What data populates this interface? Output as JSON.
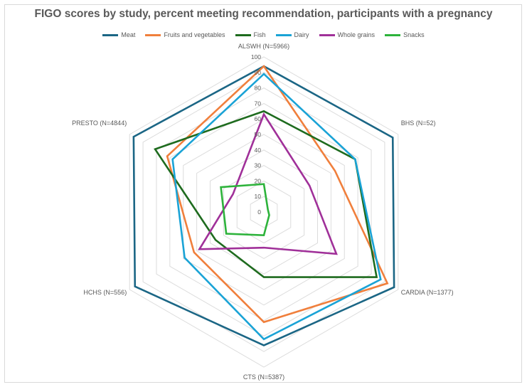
{
  "chart_data": {
    "type": "radar",
    "title": "FIGO scores by study, percent meeting recommendation, participants with a pregnancy",
    "categories": [
      "ALSWH (N=5966)",
      "BHS (N=52)",
      "CARDIA (N=1377)",
      "CTS (N=5387)",
      "HCHS (N=556)",
      "PRESTO (N=4844)"
    ],
    "rlim": [
      0,
      100
    ],
    "ticks": [
      "0",
      "10",
      "20",
      "30",
      "40",
      "50",
      "60",
      "70",
      "80",
      "90",
      "100"
    ],
    "legend_position": "top",
    "series": [
      {
        "name": "Meat",
        "color": "#1b6685",
        "values": [
          94,
          96,
          97,
          86,
          96,
          97
        ]
      },
      {
        "name": "Fruits and vegetables",
        "color": "#f07f3c",
        "values": [
          94,
          53,
          92,
          71,
          52,
          72
        ]
      },
      {
        "name": "Fish",
        "color": "#1e6b1e",
        "values": [
          65,
          68,
          84,
          42,
          36,
          81
        ]
      },
      {
        "name": "Dairy",
        "color": "#1aa3d6",
        "values": [
          89,
          68,
          87,
          82,
          59,
          68
        ]
      },
      {
        "name": "Whole grains",
        "color": "#a03099",
        "values": [
          63,
          34,
          54,
          23,
          48,
          23
        ]
      },
      {
        "name": "Snacks",
        "color": "#2db33b",
        "values": [
          18,
          3,
          4,
          15,
          28,
          32
        ]
      }
    ]
  }
}
